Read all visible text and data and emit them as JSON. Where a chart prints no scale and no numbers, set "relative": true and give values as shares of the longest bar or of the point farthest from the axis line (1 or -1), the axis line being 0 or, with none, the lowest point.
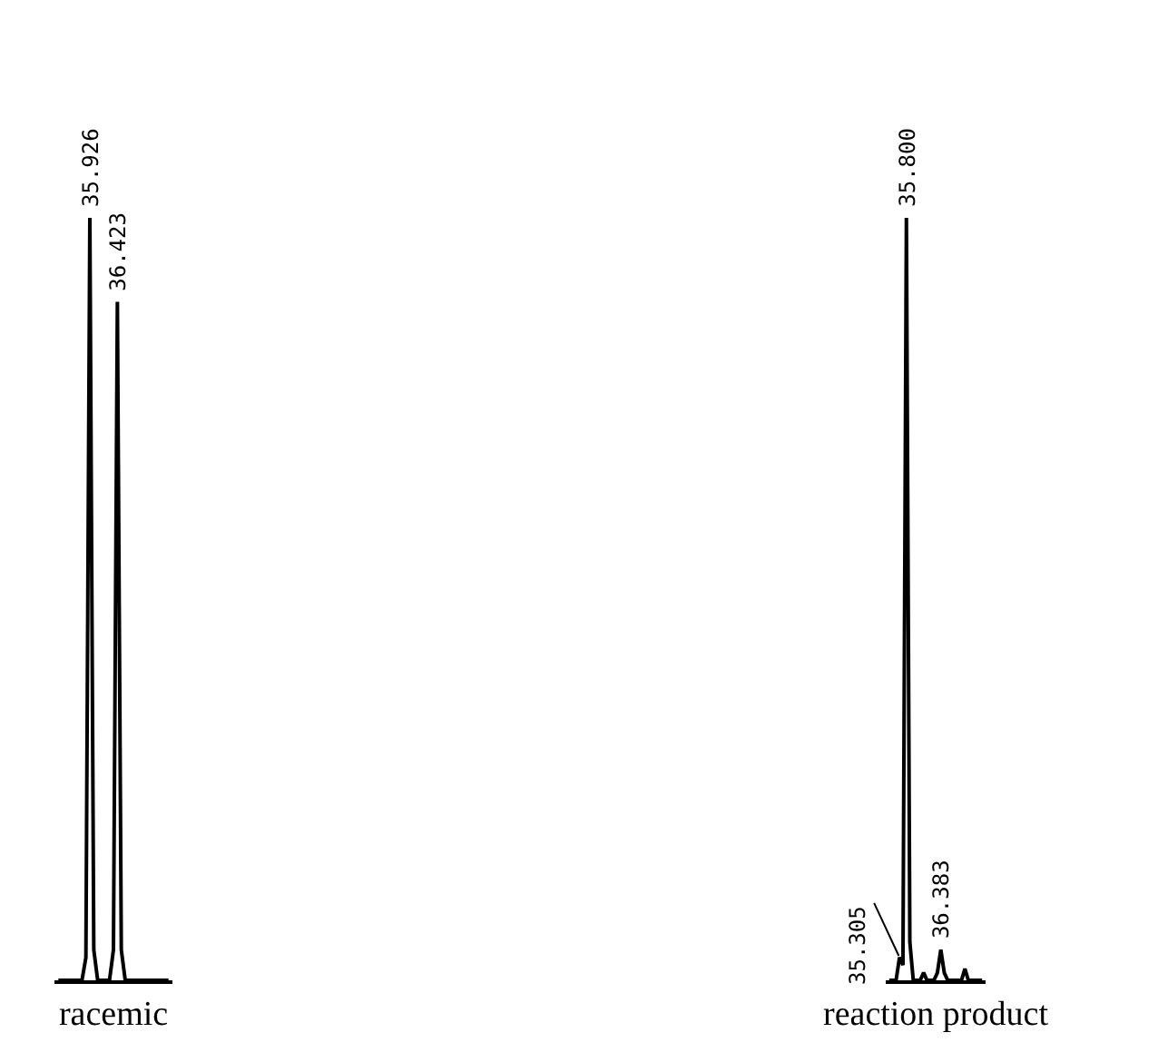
{
  "chart_data": [
    {
      "type": "line",
      "relative": true,
      "xlabel": "racemic",
      "categories": [
        null,
        null,
        null,
        null,
        null,
        null,
        null,
        null,
        null,
        null,
        null,
        null,
        null,
        null,
        null,
        null,
        null,
        null,
        null,
        null,
        null,
        null,
        null,
        null,
        null,
        null,
        null,
        null,
        null
      ],
      "series": [
        {
          "color": "#000000",
          "values": [
            0,
            0,
            0,
            0,
            0,
            0,
            0,
            0.03,
            1,
            0.04,
            0,
            0,
            0,
            0,
            0.04,
            0.89,
            0.04,
            0,
            0,
            0,
            0,
            0,
            0,
            0,
            0,
            0,
            0,
            0,
            0
          ]
        }
      ],
      "annotations": [
        {
          "text": "35.926",
          "y": 1
        },
        {
          "text": "36.423",
          "y": 0.89
        }
      ]
    },
    {
      "type": "line",
      "relative": true,
      "xlabel": "reaction product",
      "categories": [
        null,
        null,
        null,
        null,
        null,
        null,
        null,
        null,
        null,
        null,
        null,
        null,
        null,
        null,
        null,
        null,
        null,
        null,
        null,
        null,
        null,
        null,
        null,
        null,
        null,
        null,
        null,
        null
      ],
      "series": [
        {
          "color": "#000000",
          "values": [
            0,
            0,
            0,
            0.03,
            0.02,
            1,
            0.05,
            0,
            0,
            0,
            0.01,
            0,
            0,
            0,
            0.01,
            0.04,
            0.01,
            0,
            0,
            0,
            0,
            0,
            0.015,
            0,
            0,
            0,
            0,
            0
          ]
        }
      ],
      "annotations": [
        "35.305",
        {
          "text": "35.800",
          "y": 1
        },
        {
          "text": "36.383",
          "y": 0.04
        }
      ]
    }
  ]
}
